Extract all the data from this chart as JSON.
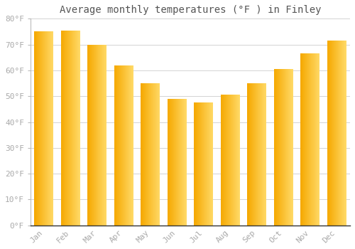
{
  "title": "Average monthly temperatures (°F ) in Finley",
  "months": [
    "Jan",
    "Feb",
    "Mar",
    "Apr",
    "May",
    "Jun",
    "Jul",
    "Aug",
    "Sep",
    "Oct",
    "Nov",
    "Dec"
  ],
  "values": [
    75,
    75.5,
    70,
    62,
    55,
    49,
    47.5,
    50.5,
    55,
    60.5,
    66.5,
    71.5
  ],
  "bar_color_left": "#F5A800",
  "bar_color_right": "#FFD966",
  "background_color": "#FFFFFF",
  "plot_bg_color": "#FFFFFF",
  "grid_color": "#CCCCCC",
  "ylim": [
    0,
    80
  ],
  "yticks": [
    0,
    10,
    20,
    30,
    40,
    50,
    60,
    70,
    80
  ],
  "ytick_labels": [
    "0°F",
    "10°F",
    "20°F",
    "30°F",
    "40°F",
    "50°F",
    "60°F",
    "70°F",
    "80°F"
  ],
  "title_fontsize": 10,
  "tick_fontsize": 8,
  "tick_color": "#AAAAAA",
  "font_family": "monospace",
  "title_color": "#555555"
}
